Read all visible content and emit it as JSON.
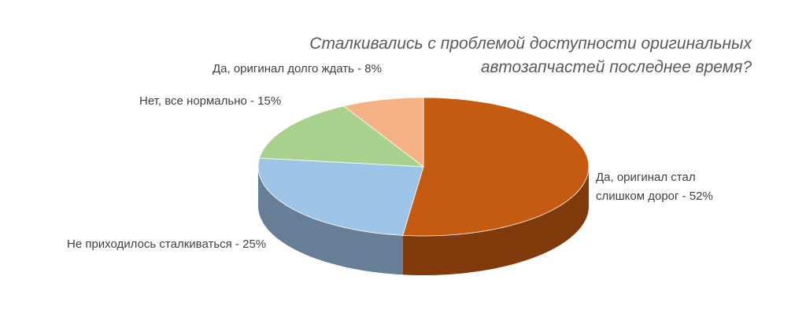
{
  "chart_data": {
    "type": "pie3d",
    "title": [
      "Сталкивались  с проблемой доступности оригинальных",
      "автозапчастей  последнее время?"
    ],
    "values": [
      52,
      25,
      15,
      8
    ],
    "value_labels": [
      "Да, оригинал стал слишком дорог - 52%",
      "Не приходилось сталкиваться - 25%",
      "Нет, все нормально - 15%",
      "Да, оригинал долго ждать - 8%"
    ],
    "colors": [
      "#c55a11",
      "#9dc3e6",
      "#a9d18e",
      "#f4b183"
    ]
  }
}
